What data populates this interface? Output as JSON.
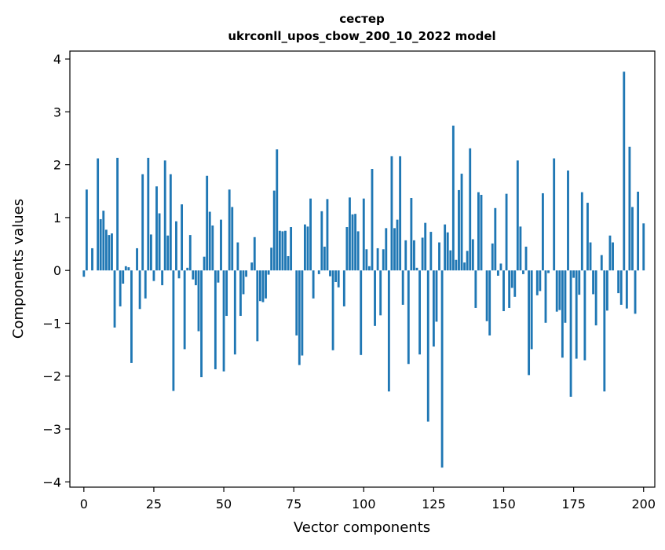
{
  "chart_data": {
    "type": "bar",
    "title_line1": "сестер",
    "title_line2": "ukrconll_upos_cbow_200_10_2022 model",
    "xlabel": "Vector components",
    "ylabel": "Components values",
    "xlim": [
      -5,
      204
    ],
    "ylim": [
      -4.1,
      4.15
    ],
    "xticks": [
      0,
      25,
      50,
      75,
      100,
      125,
      150,
      175,
      200
    ],
    "yticks": [
      -4,
      -3,
      -2,
      -1,
      0,
      1,
      2,
      3,
      4
    ],
    "ytick_labels": [
      "−4",
      "−3",
      "−2",
      "−1",
      "0",
      "1",
      "2",
      "3",
      "4"
    ],
    "grid": false,
    "bar_color": "#1f77b4",
    "values": [
      -0.12,
      1.53,
      0.0,
      0.42,
      0.0,
      2.12,
      0.97,
      1.13,
      0.77,
      0.67,
      0.7,
      -1.08,
      2.13,
      -0.68,
      -0.25,
      0.08,
      0.06,
      -1.75,
      0.0,
      0.42,
      -0.73,
      1.82,
      -0.53,
      2.13,
      0.68,
      -0.2,
      1.59,
      1.08,
      -0.28,
      2.08,
      0.66,
      1.82,
      -2.28,
      0.93,
      -0.15,
      1.25,
      -1.49,
      0.05,
      0.67,
      -0.17,
      -0.28,
      -1.15,
      -2.02,
      0.26,
      1.79,
      1.11,
      0.85,
      -1.87,
      -0.23,
      0.96,
      -1.91,
      -0.86,
      1.53,
      1.2,
      -1.59,
      0.53,
      -0.86,
      -0.45,
      -0.12,
      0.0,
      0.15,
      0.63,
      -1.34,
      -0.58,
      -0.6,
      -0.53,
      -0.08,
      0.43,
      1.51,
      2.29,
      0.75,
      0.74,
      0.75,
      0.27,
      0.82,
      0.0,
      -1.23,
      -1.79,
      -1.61,
      0.87,
      0.83,
      1.36,
      -0.53,
      0.0,
      -0.07,
      1.12,
      0.45,
      1.35,
      -0.11,
      -1.51,
      -0.22,
      -0.32,
      0.0,
      -0.68,
      0.82,
      1.38,
      1.06,
      1.07,
      0.74,
      -1.6,
      1.36,
      0.4,
      0.08,
      1.92,
      -1.05,
      0.42,
      -0.85,
      0.4,
      0.8,
      -2.29,
      2.16,
      0.8,
      0.96,
      2.16,
      -0.65,
      0.57,
      -1.77,
      1.37,
      0.57,
      0.05,
      -1.59,
      0.62,
      0.9,
      -2.86,
      0.73,
      -1.44,
      -0.97,
      0.53,
      -3.73,
      0.87,
      0.72,
      0.38,
      2.74,
      0.2,
      1.52,
      1.83,
      0.15,
      0.37,
      2.31,
      0.59,
      -0.71,
      1.48,
      1.43,
      0.0,
      -0.96,
      -1.23,
      0.51,
      1.18,
      -0.1,
      0.13,
      -0.77,
      1.45,
      -0.71,
      -0.33,
      -0.5,
      2.08,
      0.83,
      -0.07,
      0.45,
      -1.98,
      -1.49,
      0.0,
      -0.47,
      -0.39,
      1.46,
      -0.99,
      -0.05,
      0.0,
      2.12,
      -0.78,
      -0.75,
      -1.65,
      -0.99,
      1.89,
      -2.39,
      -0.14,
      -1.67,
      -0.46,
      1.48,
      -1.7,
      1.28,
      0.53,
      -0.45,
      -1.04,
      0.0,
      0.29,
      -2.29,
      -0.76,
      0.66,
      0.53,
      0.0,
      -0.43,
      -0.65,
      3.76,
      -0.72,
      2.34,
      1.2,
      -0.82,
      1.49,
      0.0,
      0.89
    ]
  }
}
